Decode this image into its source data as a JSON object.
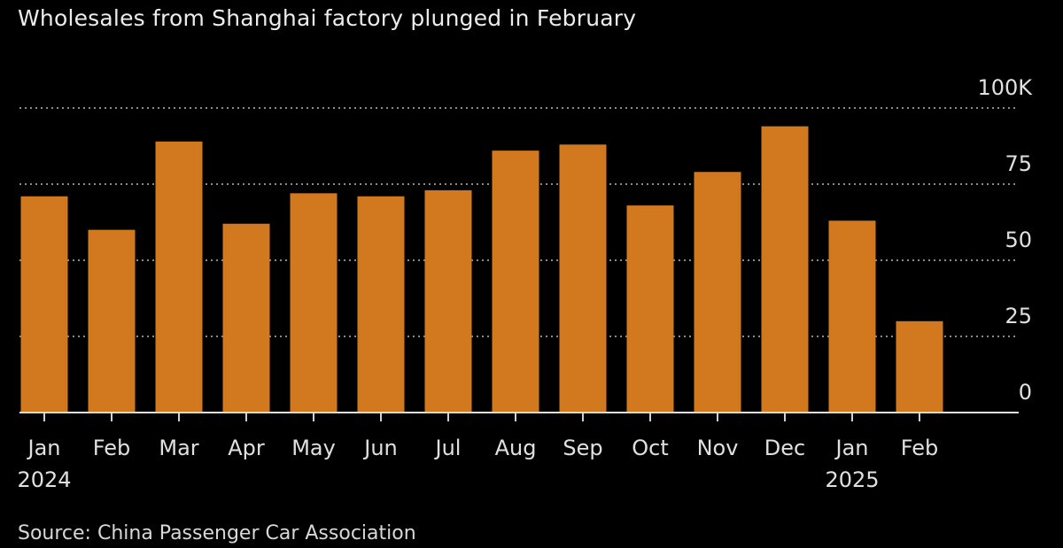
{
  "chart_data": {
    "type": "bar",
    "title": "Wholesales from Shanghai factory plunged in February",
    "categories": [
      "Jan",
      "Feb",
      "Mar",
      "Apr",
      "May",
      "Jun",
      "Jul",
      "Aug",
      "Sep",
      "Oct",
      "Nov",
      "Dec",
      "Jan",
      "Feb"
    ],
    "year_labels": [
      {
        "index": 0,
        "label": "2024"
      },
      {
        "index": 12,
        "label": "2025"
      }
    ],
    "values": [
      71,
      60,
      89,
      62,
      72,
      71,
      73,
      86,
      88,
      68,
      79,
      94,
      63,
      30
    ],
    "ylim": [
      0,
      100
    ],
    "yticks": [
      {
        "value": 0,
        "label": "0"
      },
      {
        "value": 25,
        "label": "25"
      },
      {
        "value": 50,
        "label": "50"
      },
      {
        "value": 75,
        "label": "75"
      },
      {
        "value": 100,
        "label": "100K"
      }
    ],
    "bar_color": "#d2781e",
    "grid": true,
    "grid_style": "dotted",
    "yaxis_position": "right",
    "source": "Source: China Passenger Car Association"
  }
}
